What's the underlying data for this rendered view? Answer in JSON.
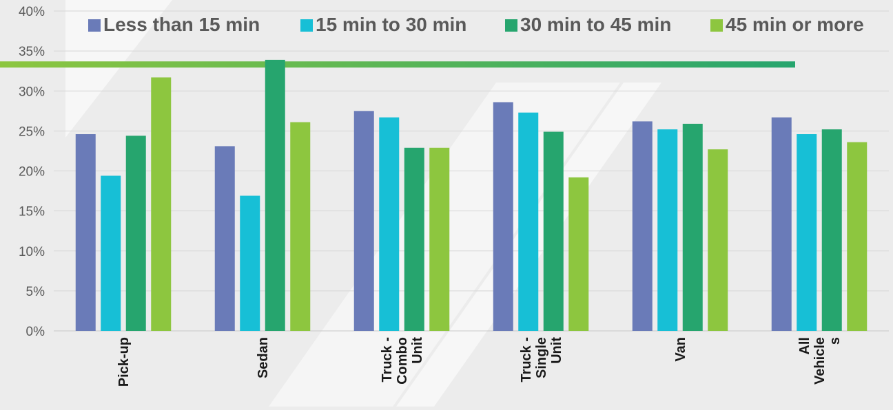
{
  "chart_data": {
    "type": "bar",
    "title": "",
    "xlabel": "",
    "ylabel": "",
    "categories": [
      "Pick-up",
      "Sedan",
      "Truck - Combo Unit",
      "Truck - Single Unit",
      "Van",
      "All Vehicles"
    ],
    "category_label_lines": [
      [
        "Pick-up"
      ],
      [
        "Sedan"
      ],
      [
        "Truck -",
        "Combo",
        "Unit"
      ],
      [
        "Truck -",
        "Single",
        "Unit"
      ],
      [
        "Van"
      ],
      [
        "All",
        "Vehicle",
        "s"
      ]
    ],
    "series": [
      {
        "name": "Less than 15 min",
        "color": "#6a7bb8",
        "values": [
          24.6,
          23.1,
          27.5,
          28.6,
          26.2,
          26.7
        ]
      },
      {
        "name": "15 min to 30 min",
        "color": "#17bfd6",
        "values": [
          19.4,
          16.9,
          26.7,
          27.3,
          25.2,
          24.6
        ]
      },
      {
        "name": "30 min to 45 min",
        "color": "#26a56e",
        "values": [
          24.4,
          33.9,
          22.9,
          24.9,
          25.9,
          25.2
        ]
      },
      {
        "name": "45 min or more",
        "color": "#8dc63f",
        "values": [
          31.7,
          26.1,
          22.9,
          19.2,
          22.7,
          23.6
        ]
      }
    ],
    "y_ticks": [
      "0%",
      "5%",
      "10%",
      "15%",
      "20%",
      "25%",
      "30%",
      "35%",
      "40%"
    ],
    "ylim": [
      0,
      40
    ],
    "y_unit": "%",
    "grid": true,
    "legend_position": "top"
  },
  "colors": {
    "background": "#ececec",
    "gridline": "#d6d6d6",
    "axis_text": "#595959",
    "label_text": "#1a1a1a",
    "accent_start": "#8dc63f",
    "accent_end": "#26a56e"
  }
}
